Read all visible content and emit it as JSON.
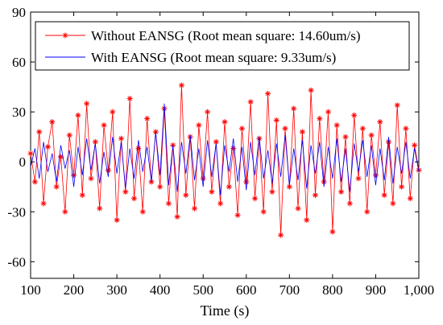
{
  "chart_data": {
    "type": "line",
    "xlabel": "Time (s)",
    "ylabel": "",
    "xlim": [
      100,
      1000
    ],
    "ylim": [
      -70,
      90
    ],
    "x_ticks": [
      100,
      200,
      300,
      400,
      500,
      600,
      700,
      800,
      900,
      1000
    ],
    "x_tick_labels": [
      "100",
      "200",
      "300",
      "400",
      "500",
      "600",
      "700",
      "800",
      "900",
      "1,000"
    ],
    "y_ticks": [
      90,
      60,
      30,
      0,
      -30,
      -60
    ],
    "y_tick_labels": [
      "90",
      "60",
      "30",
      "0",
      "-30",
      "-60"
    ],
    "grid": false,
    "legend_position": "top",
    "series": [
      {
        "name": "Without EANSG (Root mean square: 14.60um/s)",
        "color": "#ff0000",
        "marker": "asterisk",
        "x": [
          100,
          110,
          120,
          130,
          140,
          150,
          160,
          170,
          180,
          190,
          200,
          210,
          220,
          230,
          240,
          250,
          260,
          270,
          280,
          290,
          300,
          310,
          320,
          330,
          340,
          350,
          360,
          370,
          380,
          390,
          400,
          410,
          420,
          430,
          440,
          450,
          460,
          470,
          480,
          490,
          500,
          510,
          520,
          530,
          540,
          550,
          560,
          570,
          580,
          590,
          600,
          610,
          620,
          630,
          640,
          650,
          660,
          670,
          680,
          690,
          700,
          710,
          720,
          730,
          740,
          750,
          760,
          770,
          780,
          790,
          800,
          810,
          820,
          830,
          840,
          850,
          860,
          870,
          880,
          890,
          900,
          910,
          920,
          930,
          940,
          950,
          960,
          970,
          980,
          990,
          1000
        ],
        "y": [
          5,
          -12,
          18,
          -25,
          9,
          24,
          -15,
          3,
          -30,
          16,
          -8,
          28,
          -20,
          35,
          -10,
          12,
          -28,
          22,
          -5,
          30,
          -35,
          14,
          -18,
          38,
          -22,
          8,
          -30,
          26,
          -12,
          18,
          -15,
          32,
          -25,
          10,
          -33,
          46,
          -20,
          15,
          -28,
          22,
          -10,
          30,
          -18,
          12,
          -25,
          24,
          -15,
          8,
          -32,
          20,
          -12,
          36,
          -22,
          14,
          -30,
          41,
          -18,
          25,
          -44,
          20,
          -15,
          32,
          -28,
          18,
          -35,
          43,
          -20,
          26,
          -12,
          30,
          -42,
          22,
          -18,
          15,
          -25,
          28,
          -10,
          20,
          -30,
          16,
          -8,
          24,
          -20,
          12,
          -25,
          34,
          -15,
          20,
          -22,
          10,
          -5
        ]
      },
      {
        "name": "With EANSG (Root mean square: 9.33um/s)",
        "color": "#0000ff",
        "marker": "none",
        "x": [
          100,
          110,
          120,
          130,
          140,
          150,
          160,
          170,
          180,
          190,
          200,
          210,
          220,
          230,
          240,
          250,
          260,
          270,
          280,
          290,
          300,
          310,
          320,
          330,
          340,
          350,
          360,
          370,
          380,
          390,
          400,
          410,
          420,
          430,
          440,
          450,
          460,
          470,
          480,
          490,
          500,
          510,
          520,
          530,
          540,
          550,
          560,
          570,
          580,
          590,
          600,
          610,
          620,
          630,
          640,
          650,
          660,
          670,
          680,
          690,
          700,
          710,
          720,
          730,
          740,
          750,
          760,
          770,
          780,
          790,
          800,
          810,
          820,
          830,
          840,
          850,
          860,
          870,
          880,
          890,
          900,
          910,
          920,
          930,
          940,
          950,
          960,
          970,
          980,
          990,
          1000
        ],
        "y": [
          -3,
          8,
          -10,
          12,
          -6,
          5,
          -12,
          10,
          -4,
          7,
          -15,
          9,
          -8,
          14,
          -5,
          11,
          -13,
          6,
          -9,
          15,
          -7,
          12,
          -16,
          8,
          -10,
          13,
          -6,
          9,
          -12,
          18,
          -8,
          35,
          -14,
          10,
          -18,
          12,
          -7,
          16,
          -11,
          8,
          -15,
          13,
          -9,
          11,
          -20,
          10,
          -6,
          14,
          -12,
          9,
          -17,
          12,
          -8,
          15,
          -10,
          7,
          -13,
          11,
          -9,
          16,
          -14,
          8,
          -11,
          13,
          -16,
          10,
          -7,
          12,
          -15,
          9,
          -10,
          14,
          -12,
          8,
          -18,
          11,
          -6,
          13,
          -9,
          10,
          -14,
          8,
          -11,
          15,
          -13,
          9,
          -7,
          12,
          -10,
          8,
          -6
        ]
      }
    ]
  }
}
